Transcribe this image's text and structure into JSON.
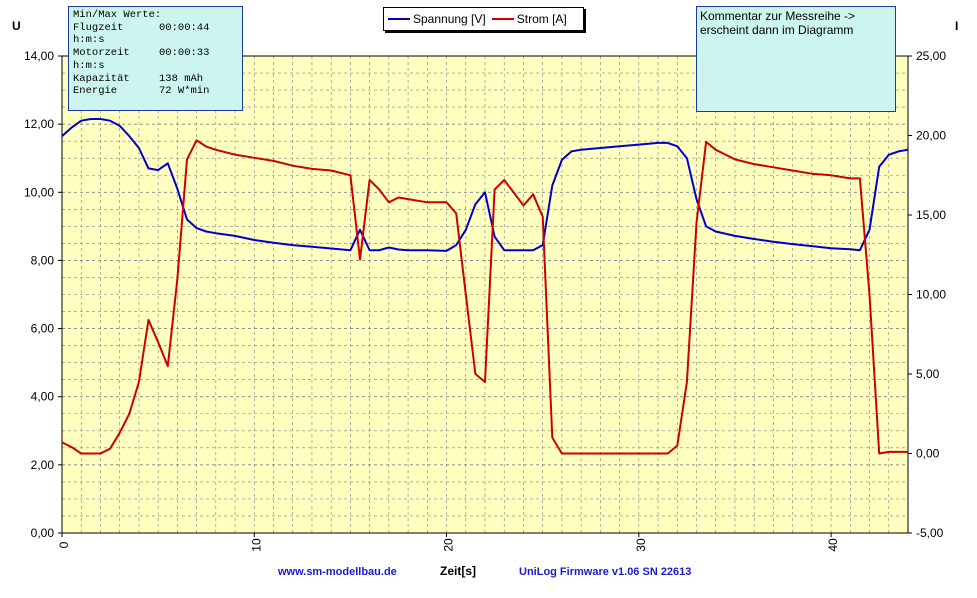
{
  "chart_data": {
    "type": "line",
    "xlabel": "Zeit[s]",
    "y_left_label": "U",
    "y_right_label": "I",
    "xlim": [
      0,
      44
    ],
    "y_left_lim": [
      0,
      14
    ],
    "y_right_lim": [
      -5,
      25
    ],
    "x_ticks": [
      "0",
      "10",
      "20",
      "30",
      "40"
    ],
    "y_left_ticks": [
      "0,00",
      "2,00",
      "4,00",
      "6,00",
      "8,00",
      "10,00",
      "12,00",
      "14,00"
    ],
    "y_right_ticks": [
      "-5,00",
      "0,00",
      "5,00",
      "10,00",
      "15,00",
      "20,00",
      "25,00"
    ],
    "grid": true,
    "legend_position": "top-center",
    "series": [
      {
        "name": "Spannung [V]",
        "axis": "left",
        "color": "#0000cc",
        "x": [
          0,
          0.5,
          1.0,
          1.5,
          2.0,
          2.5,
          3.0,
          3.5,
          4.0,
          4.5,
          5.0,
          5.5,
          6.0,
          6.5,
          7.0,
          7.5,
          8.0,
          9.0,
          10.0,
          11.0,
          12.0,
          13.0,
          14.0,
          15.0,
          15.5,
          16.0,
          16.5,
          17.0,
          17.5,
          18.0,
          19.0,
          20.0,
          20.5,
          21.0,
          21.5,
          22.0,
          22.5,
          23.0,
          24.0,
          24.5,
          25.0,
          25.5,
          26.0,
          26.5,
          27.0,
          28.0,
          29.0,
          30.0,
          31.0,
          31.5,
          32.0,
          32.5,
          33.0,
          33.5,
          34.0,
          35.0,
          36.0,
          37.0,
          38.0,
          39.0,
          40.0,
          41.0,
          41.5,
          42.0,
          42.5,
          43.0,
          43.5,
          44.0
        ],
        "values": [
          11.65,
          11.9,
          12.1,
          12.15,
          12.15,
          12.1,
          11.95,
          11.65,
          11.3,
          10.7,
          10.65,
          10.85,
          10.1,
          9.2,
          8.95,
          8.85,
          8.8,
          8.72,
          8.6,
          8.52,
          8.45,
          8.4,
          8.35,
          8.3,
          8.9,
          8.3,
          8.3,
          8.38,
          8.32,
          8.3,
          8.3,
          8.28,
          8.45,
          8.9,
          9.65,
          10.0,
          8.7,
          8.3,
          8.3,
          8.3,
          8.45,
          10.2,
          10.95,
          11.2,
          11.25,
          11.3,
          11.35,
          11.4,
          11.45,
          11.45,
          11.35,
          11.0,
          9.8,
          9.0,
          8.85,
          8.72,
          8.63,
          8.55,
          8.48,
          8.42,
          8.36,
          8.33,
          8.3,
          8.9,
          10.75,
          11.1,
          11.2,
          11.25
        ]
      },
      {
        "name": "Strom [A]",
        "axis": "right",
        "color": "#cc0000",
        "x": [
          0,
          0.5,
          1.0,
          1.5,
          2.0,
          2.5,
          3.0,
          3.5,
          4.0,
          4.5,
          5.0,
          5.5,
          6.0,
          6.5,
          7.0,
          7.5,
          8.0,
          9.0,
          10.0,
          11.0,
          12.0,
          13.0,
          14.0,
          15.0,
          15.5,
          16.0,
          16.5,
          17.0,
          17.5,
          18.0,
          19.0,
          20.0,
          20.5,
          21.0,
          21.5,
          22.0,
          22.5,
          23.0,
          24.0,
          24.5,
          25.0,
          25.5,
          26.0,
          26.5,
          27.0,
          28.0,
          29.0,
          30.0,
          31.0,
          31.5,
          32.0,
          32.5,
          33.0,
          33.5,
          34.0,
          35.0,
          36.0,
          37.0,
          38.0,
          39.0,
          40.0,
          41.0,
          41.5,
          42.0,
          42.5,
          43.0,
          43.5,
          44.0
        ],
        "values": [
          0.7,
          0.4,
          0.0,
          0.0,
          0.0,
          0.3,
          1.3,
          2.5,
          4.5,
          8.4,
          7.0,
          5.5,
          11.0,
          18.5,
          19.7,
          19.3,
          19.1,
          18.8,
          18.6,
          18.4,
          18.1,
          17.9,
          17.8,
          17.5,
          12.2,
          17.2,
          16.6,
          15.8,
          16.1,
          16.0,
          15.8,
          15.8,
          15.1,
          10.0,
          5.0,
          4.5,
          16.6,
          17.2,
          15.6,
          16.3,
          14.9,
          1.0,
          0.0,
          0.0,
          0.0,
          0.0,
          0.0,
          0.0,
          0.0,
          0.0,
          0.5,
          4.5,
          14.5,
          19.6,
          19.1,
          18.5,
          18.2,
          18.0,
          17.8,
          17.6,
          17.5,
          17.3,
          17.3,
          10.0,
          0.0,
          0.1,
          0.1,
          0.1
        ]
      }
    ]
  },
  "stats_box": {
    "title": "Min/Max Werte:",
    "rows": [
      {
        "label": "Flugzeit",
        "value": "00:00:44"
      },
      {
        "label": "h:m:s",
        "value": ""
      },
      {
        "label": "Motorzeit",
        "value": "00:00:33"
      },
      {
        "label": "h:m:s",
        "value": ""
      },
      {
        "label": "Kapazität",
        "value": "138 mAh"
      },
      {
        "label": "Energie",
        "value": "72 W*min"
      }
    ]
  },
  "comment_box": {
    "text": "Kommentar zur Messreihe ->\nerscheint dann im Diagramm"
  },
  "footer": {
    "website": "www.sm-modellbau.de",
    "firmware": "UniLog Firmware v1.06 SN 22613"
  },
  "colors": {
    "plot_background": "#ffffc0",
    "grid": "#808080",
    "voltage": "#0000cc",
    "current": "#cc0000",
    "footer_text": "#1a1ad0",
    "box_background": "#ccf5ef"
  }
}
